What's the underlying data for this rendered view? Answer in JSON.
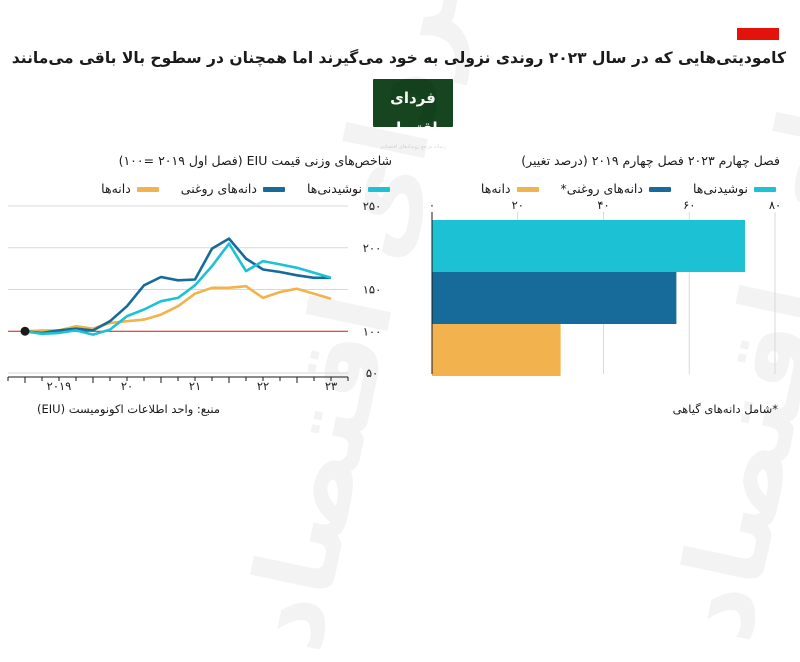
{
  "title": "کامودیتی‌هایی که در سال ۲۰۲۳ روندی نزولی به خود می‌گیرند اما همچنان در سطوح بالا باقی می‌مانند",
  "logo": {
    "name": "فردای اقتصاد",
    "tagline": "رسانه مرجع رویدادهای اقتصادی"
  },
  "watermark": "فردای اقتصاد",
  "colors": {
    "accent": "#e3120b",
    "cyan": "#1cc2d4",
    "blue": "#176b9a",
    "orange": "#f2b24d",
    "logo_bg": "#16451f"
  },
  "chart_data": [
    {
      "type": "line",
      "title": "شاخص‌های وزنی قیمت EIU (فصل اول ۲۰۱۹ =۱۰۰)",
      "source": "منبع: واحد اطلاعات اکونومیست (EIU)",
      "ylim": [
        50,
        250
      ],
      "yticks": [
        50,
        100,
        150,
        200,
        250
      ],
      "ytick_labels": [
        "۵۰",
        "۱۰۰",
        "۱۵۰",
        "۲۰۰",
        "۲۵۰"
      ],
      "baseline": 100,
      "x_start": 2018.75,
      "x_end": 2023.75,
      "x_labels": [
        {
          "x": 2019,
          "label": "۲۰۱۹"
        },
        {
          "x": 2020,
          "label": "۲۰"
        },
        {
          "x": 2021,
          "label": "۲۱"
        },
        {
          "x": 2022,
          "label": "۲۲"
        },
        {
          "x": 2023,
          "label": "۲۳"
        }
      ],
      "x": [
        2019.0,
        2019.25,
        2019.5,
        2019.75,
        2020.0,
        2020.25,
        2020.5,
        2020.75,
        2021.0,
        2021.25,
        2021.5,
        2021.75,
        2022.0,
        2022.25,
        2022.5,
        2022.75,
        2023.0,
        2023.25,
        2023.5
      ],
      "series": [
        {
          "name": "نوشیدنی‌ها",
          "color": "#1cc2d4",
          "values": [
            100,
            97,
            98,
            101,
            96,
            102,
            118,
            126,
            136,
            140,
            155,
            178,
            205,
            172,
            184,
            180,
            176,
            170,
            164
          ]
        },
        {
          "name": "دانه‌های روغنی",
          "color": "#176b9a",
          "values": [
            100,
            98,
            101,
            103,
            101,
            112,
            130,
            155,
            165,
            161,
            162,
            199,
            211,
            187,
            174,
            171,
            167,
            164,
            164
          ]
        },
        {
          "name": "دانه‌ها",
          "color": "#f2b24d",
          "values": [
            100,
            101,
            101,
            106,
            103,
            110,
            112,
            114,
            120,
            130,
            145,
            152,
            152,
            154,
            140,
            147,
            151,
            145,
            139
          ]
        }
      ]
    },
    {
      "type": "bar",
      "orientation": "horizontal",
      "title": "فصل چهارم ۲۰۲۳ فصل چهارم ۲۰۱۹ (درصد تغییر)",
      "note": "*شامل دانه‌های گیاهی",
      "xlim": [
        0,
        80
      ],
      "xticks": [
        0,
        20,
        40,
        60,
        80
      ],
      "xtick_labels": [
        "۰",
        "۲۰",
        "۴۰",
        "۶۰",
        "۸۰"
      ],
      "categories": [
        "نوشیدنی‌ها",
        "دانه‌های روغنی*",
        "دانه‌ها"
      ],
      "values": [
        73,
        57,
        30
      ],
      "colors": [
        "#1cc2d4",
        "#176b9a",
        "#f2b24d"
      ]
    }
  ]
}
